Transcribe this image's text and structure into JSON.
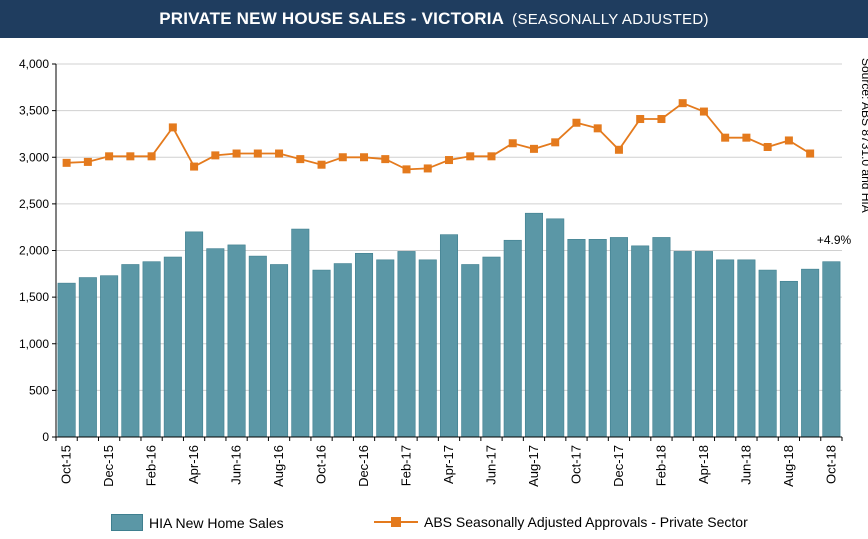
{
  "header": {
    "title": "PRIVATE  NEW HOUSE SALES -  VICTORIA",
    "subtitle": "(SEASONALLY ADJUSTED)"
  },
  "chart_data": {
    "type": "bar",
    "title": "PRIVATE NEW HOUSE SALES - VICTORIA (SEASONALLY ADJUSTED)",
    "source": "Source: ABS 8731.0 and HIA",
    "annotation": "+4.9%",
    "ylim": [
      0,
      4000
    ],
    "yticks": [
      "0",
      "500",
      "1,000",
      "1,500",
      "2,000",
      "2,500",
      "3,000",
      "3,500",
      "4,000"
    ],
    "ytick_values": [
      0,
      500,
      1000,
      1500,
      2000,
      2500,
      3000,
      3500,
      4000
    ],
    "categories": [
      "Oct-15",
      "Nov-15",
      "Dec-15",
      "Jan-16",
      "Feb-16",
      "Mar-16",
      "Apr-16",
      "May-16",
      "Jun-16",
      "Jul-16",
      "Aug-16",
      "Sep-16",
      "Oct-16",
      "Nov-16",
      "Dec-16",
      "Jan-17",
      "Feb-17",
      "Mar-17",
      "Apr-17",
      "May-17",
      "Jun-17",
      "Jul-17",
      "Aug-17",
      "Sep-17",
      "Oct-17",
      "Nov-17",
      "Dec-17",
      "Jan-18",
      "Feb-18",
      "Mar-18",
      "Apr-18",
      "May-18",
      "Jun-18",
      "Jul-18",
      "Aug-18",
      "Sep-18",
      "Oct-18"
    ],
    "x_tick_labels": [
      "Oct-15",
      "Dec-15",
      "Feb-16",
      "Apr-16",
      "Jun-16",
      "Aug-16",
      "Oct-16",
      "Dec-16",
      "Feb-17",
      "Apr-17",
      "Jun-17",
      "Aug-17",
      "Oct-17",
      "Dec-17",
      "Feb-18",
      "Apr-18",
      "Jun-18",
      "Aug-18",
      "Oct-18"
    ],
    "series": [
      {
        "name": "HIA New Home Sales",
        "kind": "bar",
        "color": "#5b97a6",
        "values": [
          1650,
          1710,
          1730,
          1850,
          1880,
          1930,
          2200,
          2020,
          2060,
          1940,
          1850,
          2230,
          1790,
          1860,
          1970,
          1900,
          1990,
          1900,
          2170,
          1850,
          1930,
          2110,
          2400,
          2340,
          2120,
          2120,
          2140,
          2050,
          2140,
          1990,
          1990,
          1900,
          1900,
          1790,
          1670,
          1800,
          1880
        ]
      },
      {
        "name": "ABS Seasonally Adjusted Approvals - Private Sector",
        "kind": "line",
        "color": "#e47a1d",
        "values": [
          2940,
          2950,
          3010,
          3010,
          3010,
          3320,
          2900,
          3020,
          3040,
          3040,
          3040,
          2980,
          2920,
          3000,
          3000,
          2980,
          2870,
          2880,
          2970,
          3010,
          3010,
          3150,
          3090,
          3160,
          3370,
          3310,
          3080,
          3410,
          3410,
          3580,
          3490,
          3210,
          3210,
          3110,
          3180,
          3040,
          null
        ]
      }
    ]
  },
  "legend": {
    "bar_label": "HIA New Home Sales",
    "line_label": "ABS Seasonally Adjusted Approvals - Private Sector"
  }
}
